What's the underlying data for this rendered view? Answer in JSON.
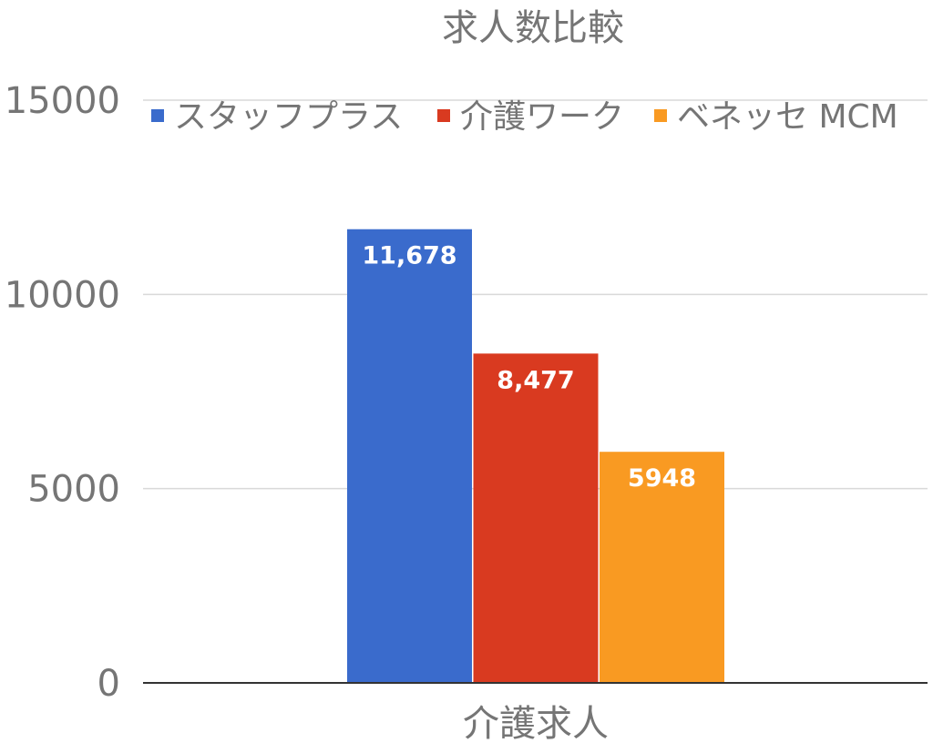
{
  "chart_data": {
    "type": "bar",
    "title": "求人数比較",
    "categories": [
      "介護求人"
    ],
    "series": [
      {
        "name": "スタッフプラス",
        "values": [
          11678
        ],
        "label": "11,678",
        "color": "#3a6bcc"
      },
      {
        "name": "介護ワーク",
        "values": [
          8477
        ],
        "label": "8,477",
        "color": "#d93a20"
      },
      {
        "name": "ベネッセ MCM",
        "values": [
          5948
        ],
        "label": "5948",
        "color": "#f99a22"
      }
    ],
    "ylim": [
      0,
      15000
    ],
    "yticks": [
      0,
      5000,
      10000,
      15000
    ],
    "ytick_labels": [
      "0",
      "5000",
      "10000",
      "15000"
    ],
    "xlabel": "",
    "ylabel": "",
    "grid": true,
    "legend_position": "top"
  }
}
